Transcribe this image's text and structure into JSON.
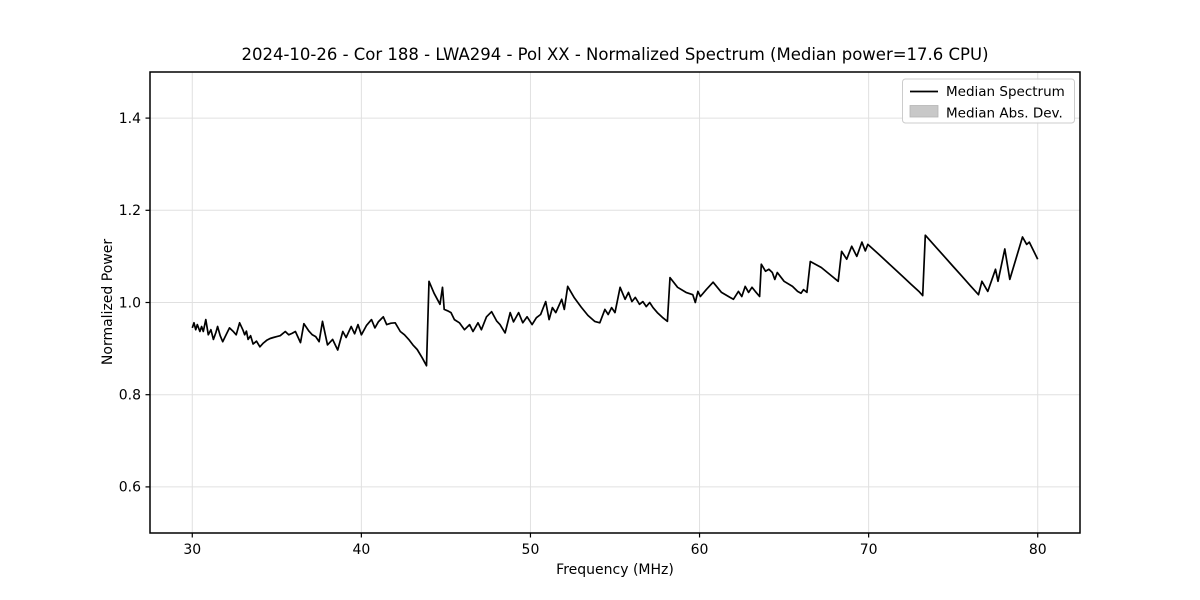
{
  "chart_data": {
    "type": "line",
    "title": "2024-10-26 - Cor 188 - LWA294 - Pol XX - Normalized Spectrum (Median power=17.6 CPU)",
    "xlabel": "Frequency (MHz)",
    "ylabel": "Normalized Power",
    "xlim": [
      27.5,
      82.5
    ],
    "ylim": [
      0.5,
      1.5
    ],
    "grid": true,
    "xticks": {
      "values": [
        30,
        40,
        50,
        60,
        70,
        80
      ],
      "labels": [
        "30",
        "40",
        "50",
        "60",
        "70",
        "80"
      ]
    },
    "yticks": {
      "values": [
        0.6,
        0.8,
        1.0,
        1.2,
        1.4
      ],
      "labels": [
        "0.6",
        "0.8",
        "1.0",
        "1.2",
        "1.4"
      ]
    },
    "legend": {
      "position": "upper right",
      "entries": [
        {
          "label": "Median Spectrum",
          "type": "line",
          "color": "#000000"
        },
        {
          "label": "Median Abs. Dev.",
          "type": "patch",
          "color": "#c8c8c8"
        }
      ]
    },
    "series": [
      {
        "name": "Median Spectrum",
        "color": "#000000",
        "points": [
          [
            30.0,
            0.945
          ],
          [
            30.1,
            0.956
          ],
          [
            30.2,
            0.941
          ],
          [
            30.3,
            0.952
          ],
          [
            30.45,
            0.937
          ],
          [
            30.55,
            0.948
          ],
          [
            30.65,
            0.937
          ],
          [
            30.8,
            0.963
          ],
          [
            30.95,
            0.93
          ],
          [
            31.1,
            0.941
          ],
          [
            31.25,
            0.92
          ],
          [
            31.4,
            0.935
          ],
          [
            31.5,
            0.948
          ],
          [
            31.65,
            0.928
          ],
          [
            31.8,
            0.915
          ],
          [
            32.0,
            0.93
          ],
          [
            32.2,
            0.945
          ],
          [
            32.4,
            0.938
          ],
          [
            32.6,
            0.93
          ],
          [
            32.8,
            0.956
          ],
          [
            33.0,
            0.94
          ],
          [
            33.1,
            0.93
          ],
          [
            33.2,
            0.938
          ],
          [
            33.3,
            0.92
          ],
          [
            33.45,
            0.928
          ],
          [
            33.6,
            0.91
          ],
          [
            33.8,
            0.916
          ],
          [
            34.0,
            0.904
          ],
          [
            34.2,
            0.912
          ],
          [
            34.4,
            0.918
          ],
          [
            34.6,
            0.922
          ],
          [
            34.8,
            0.924
          ],
          [
            35.0,
            0.926
          ],
          [
            35.2,
            0.928
          ],
          [
            35.5,
            0.937
          ],
          [
            35.7,
            0.93
          ],
          [
            35.9,
            0.933
          ],
          [
            36.1,
            0.937
          ],
          [
            36.4,
            0.913
          ],
          [
            36.6,
            0.954
          ],
          [
            36.9,
            0.938
          ],
          [
            37.1,
            0.93
          ],
          [
            37.3,
            0.926
          ],
          [
            37.5,
            0.915
          ],
          [
            37.7,
            0.959
          ],
          [
            38.0,
            0.908
          ],
          [
            38.3,
            0.92
          ],
          [
            38.6,
            0.897
          ],
          [
            38.9,
            0.937
          ],
          [
            39.1,
            0.924
          ],
          [
            39.4,
            0.948
          ],
          [
            39.6,
            0.932
          ],
          [
            39.8,
            0.952
          ],
          [
            40.0,
            0.93
          ],
          [
            40.3,
            0.95
          ],
          [
            40.6,
            0.963
          ],
          [
            40.8,
            0.945
          ],
          [
            41.0,
            0.958
          ],
          [
            41.3,
            0.969
          ],
          [
            41.5,
            0.952
          ],
          [
            41.75,
            0.955
          ],
          [
            42.0,
            0.956
          ],
          [
            42.3,
            0.937
          ],
          [
            42.55,
            0.93
          ],
          [
            42.8,
            0.92
          ],
          [
            43.05,
            0.908
          ],
          [
            43.3,
            0.898
          ],
          [
            43.6,
            0.88
          ],
          [
            43.85,
            0.863
          ],
          [
            44.0,
            1.046
          ],
          [
            44.3,
            1.02
          ],
          [
            44.65,
            0.996
          ],
          [
            44.8,
            1.033
          ],
          [
            44.9,
            0.985
          ],
          [
            45.1,
            0.982
          ],
          [
            45.3,
            0.978
          ],
          [
            45.5,
            0.963
          ],
          [
            45.8,
            0.956
          ],
          [
            46.1,
            0.941
          ],
          [
            46.4,
            0.952
          ],
          [
            46.6,
            0.937
          ],
          [
            46.9,
            0.956
          ],
          [
            47.1,
            0.941
          ],
          [
            47.4,
            0.969
          ],
          [
            47.7,
            0.98
          ],
          [
            48.0,
            0.96
          ],
          [
            48.2,
            0.952
          ],
          [
            48.5,
            0.934
          ],
          [
            48.8,
            0.978
          ],
          [
            49.0,
            0.958
          ],
          [
            49.3,
            0.978
          ],
          [
            49.55,
            0.956
          ],
          [
            49.8,
            0.969
          ],
          [
            50.1,
            0.952
          ],
          [
            50.35,
            0.967
          ],
          [
            50.6,
            0.974
          ],
          [
            50.9,
            1.002
          ],
          [
            51.1,
            0.963
          ],
          [
            51.3,
            0.989
          ],
          [
            51.5,
            0.978
          ],
          [
            51.85,
            1.007
          ],
          [
            52.0,
            0.985
          ],
          [
            52.2,
            1.035
          ],
          [
            52.6,
            1.01
          ],
          [
            53.0,
            0.99
          ],
          [
            53.4,
            0.972
          ],
          [
            53.8,
            0.959
          ],
          [
            54.1,
            0.956
          ],
          [
            54.4,
            0.985
          ],
          [
            54.6,
            0.974
          ],
          [
            54.8,
            0.989
          ],
          [
            55.0,
            0.978
          ],
          [
            55.3,
            1.033
          ],
          [
            55.6,
            1.007
          ],
          [
            55.8,
            1.022
          ],
          [
            56.0,
            1.002
          ],
          [
            56.2,
            1.011
          ],
          [
            56.45,
            0.996
          ],
          [
            56.65,
            1.002
          ],
          [
            56.85,
            0.991
          ],
          [
            57.05,
            1.0
          ],
          [
            57.25,
            0.989
          ],
          [
            57.5,
            0.978
          ],
          [
            57.8,
            0.968
          ],
          [
            58.1,
            0.959
          ],
          [
            58.25,
            1.054
          ],
          [
            58.7,
            1.033
          ],
          [
            59.2,
            1.022
          ],
          [
            59.6,
            1.017
          ],
          [
            59.75,
            1.0
          ],
          [
            59.9,
            1.024
          ],
          [
            60.05,
            1.013
          ],
          [
            60.4,
            1.028
          ],
          [
            60.8,
            1.044
          ],
          [
            61.3,
            1.022
          ],
          [
            61.8,
            1.011
          ],
          [
            62.0,
            1.007
          ],
          [
            62.3,
            1.024
          ],
          [
            62.5,
            1.013
          ],
          [
            62.7,
            1.035
          ],
          [
            62.9,
            1.022
          ],
          [
            63.1,
            1.033
          ],
          [
            63.3,
            1.024
          ],
          [
            63.55,
            1.013
          ],
          [
            63.65,
            1.083
          ],
          [
            63.9,
            1.068
          ],
          [
            64.1,
            1.072
          ],
          [
            64.3,
            1.065
          ],
          [
            64.45,
            1.05
          ],
          [
            64.6,
            1.065
          ],
          [
            65.0,
            1.046
          ],
          [
            65.5,
            1.035
          ],
          [
            65.8,
            1.024
          ],
          [
            66.0,
            1.02
          ],
          [
            66.15,
            1.028
          ],
          [
            66.35,
            1.022
          ],
          [
            66.55,
            1.089
          ],
          [
            67.2,
            1.076
          ],
          [
            67.7,
            1.061
          ],
          [
            68.2,
            1.046
          ],
          [
            68.4,
            1.111
          ],
          [
            68.7,
            1.094
          ],
          [
            69.0,
            1.122
          ],
          [
            69.3,
            1.1
          ],
          [
            69.6,
            1.131
          ],
          [
            69.8,
            1.112
          ],
          [
            69.95,
            1.126
          ],
          [
            70.5,
            1.108
          ],
          [
            71.0,
            1.091
          ],
          [
            71.5,
            1.074
          ],
          [
            72.0,
            1.057
          ],
          [
            72.5,
            1.04
          ],
          [
            73.0,
            1.023
          ],
          [
            73.2,
            1.015
          ],
          [
            73.35,
            1.146
          ],
          [
            74.0,
            1.119
          ],
          [
            74.5,
            1.099
          ],
          [
            75.0,
            1.078
          ],
          [
            75.5,
            1.058
          ],
          [
            76.0,
            1.037
          ],
          [
            76.5,
            1.017
          ],
          [
            76.7,
            1.046
          ],
          [
            77.05,
            1.024
          ],
          [
            77.5,
            1.072
          ],
          [
            77.65,
            1.046
          ],
          [
            78.05,
            1.116
          ],
          [
            78.35,
            1.05
          ],
          [
            79.1,
            1.142
          ],
          [
            79.35,
            1.126
          ],
          [
            79.5,
            1.131
          ],
          [
            80.0,
            1.094
          ]
        ]
      }
    ]
  },
  "colors": {
    "line": "#000000",
    "grid": "#e0e0e0",
    "spine": "#000000",
    "background": "#ffffff",
    "legend_border": "#cccccc",
    "legend_patch_fill": "#c8c8c8",
    "legend_patch_edge": "#b5b5b5",
    "text": "#000000"
  }
}
